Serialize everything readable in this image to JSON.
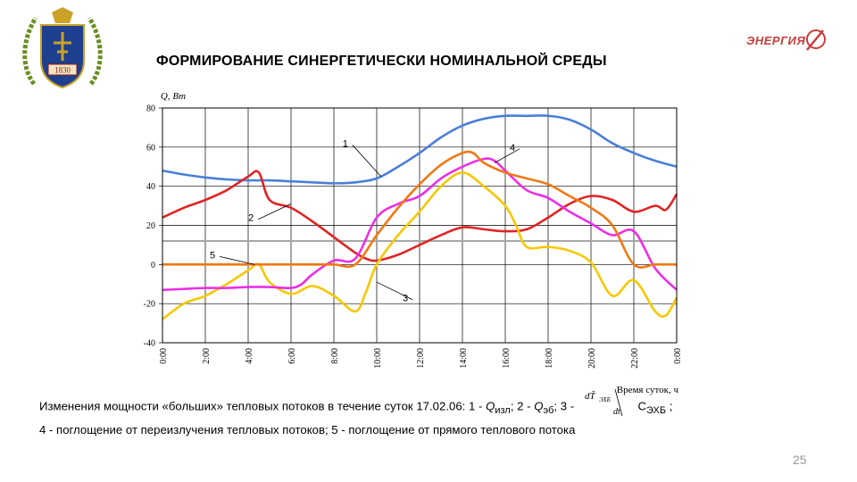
{
  "logo_left": {
    "year": "1830",
    "icon": "university-coat-of-arms-icon"
  },
  "logo_right": {
    "text": "ЭНЕРГИЯ",
    "icon": "energia-rocket-logo-icon"
  },
  "title": "ФОРМИРОВАНИЕ СИНЕРГЕТИЧЕСКИ НОМИНАЛЬНОЙ СРЕДЫ",
  "caption": {
    "line1_prefix": "Изменения мощности «больших» тепловых потоков в течение суток 17.02.06: 1 - ",
    "q": "Q",
    "sub_izl": "изл",
    "sep1": "; 2 - ",
    "sub_eb": "эб",
    "sep2": "; 3 -",
    "formula_num": "dT̃",
    "formula_num_sub": "ЭХБ",
    "formula_den": "dt",
    "c_label": "C",
    "c_sub": "ЭХБ",
    "end1": " ;",
    "line2": "4 - поглощение от переизлучения тепловых потоков; 5 - поглощение от прямого теплового потока"
  },
  "page_number": "25",
  "chart_data": {
    "type": "line",
    "ylabel": "Q, Вт",
    "xlabel": "Время суток, ч",
    "xlim": [
      0,
      24
    ],
    "ylim": [
      -40,
      80
    ],
    "yticks": [
      -40,
      -20,
      0,
      20,
      40,
      60,
      80
    ],
    "xtick_labels": [
      "0:00",
      "2:00",
      "4:00",
      "6:00",
      "8:00",
      "10:00",
      "12:00",
      "14:00",
      "16:00",
      "18:00",
      "20:00",
      "22:00",
      "0:00"
    ],
    "hline": 12,
    "hline_color": "#a6a6a6",
    "grid": true,
    "series": [
      {
        "name": "1",
        "color": "#4a7fd8",
        "x": [
          0,
          1,
          2,
          3,
          4,
          5,
          6,
          7,
          8,
          9,
          10,
          11,
          12,
          13,
          14,
          15,
          16,
          17,
          18,
          19,
          20,
          21,
          22,
          23,
          24
        ],
        "y": [
          48,
          46,
          44.5,
          43.5,
          43,
          43,
          42.5,
          42,
          41.5,
          42,
          44,
          50,
          57,
          65,
          71,
          74.5,
          76,
          76,
          76,
          74,
          69,
          62,
          57,
          53,
          50
        ]
      },
      {
        "name": "2",
        "color": "#e02424",
        "x": [
          0,
          1,
          2,
          3,
          4,
          4.5,
          5,
          6,
          7,
          8,
          9,
          9.5,
          10,
          11,
          12,
          13,
          14,
          15,
          16,
          17,
          18,
          19,
          20,
          21,
          22,
          23,
          23.5,
          24
        ],
        "y": [
          24,
          29,
          33,
          38,
          45,
          47,
          33,
          29,
          22,
          14,
          6,
          3,
          2,
          5,
          10,
          15,
          19,
          18,
          17,
          18,
          24,
          31,
          35,
          33,
          27,
          30,
          28,
          36
        ]
      },
      {
        "name": "3",
        "color": "#f5c800",
        "x": [
          0,
          1,
          2,
          3,
          4,
          4.5,
          5,
          6,
          7,
          8,
          9,
          9.5,
          10,
          11,
          12,
          13,
          14,
          15,
          16,
          16.5,
          17,
          18,
          19,
          20,
          21,
          22,
          23,
          23.5,
          24
        ],
        "y": [
          -28,
          -20,
          -16,
          -10,
          -3,
          0,
          -9,
          -15,
          -11,
          -16,
          -24,
          -14,
          0,
          15,
          27,
          40,
          47,
          40,
          30,
          20,
          9,
          9,
          7,
          1,
          -16,
          -8,
          -24,
          -26,
          -17
        ]
      },
      {
        "name": "4",
        "color": "#ec2ee7",
        "x": [
          0,
          1,
          2,
          3,
          4,
          5,
          6,
          6.5,
          7,
          8,
          9,
          10,
          11,
          12,
          13,
          14,
          15,
          15.5,
          16,
          17,
          18,
          19,
          20,
          21,
          22,
          23,
          24
        ],
        "y": [
          -13,
          -12.5,
          -12,
          -12,
          -11.5,
          -11.5,
          -12,
          -10,
          -5,
          2,
          3,
          24,
          31,
          35,
          44,
          50,
          54,
          53,
          48,
          38,
          34,
          27,
          21,
          15,
          17,
          -2,
          -13
        ]
      },
      {
        "name": "5",
        "color": "#f07814",
        "x": [
          0,
          1,
          2,
          3,
          4,
          5,
          6,
          7,
          8,
          9,
          10,
          11,
          12,
          13,
          14,
          14.5,
          15,
          16,
          17,
          18,
          19,
          20,
          21,
          22,
          23,
          24
        ],
        "y": [
          0,
          0,
          0,
          0,
          0,
          0,
          0,
          0,
          0,
          0,
          15,
          29,
          41,
          51,
          57,
          57,
          52,
          47,
          44,
          41,
          35,
          29,
          20,
          0,
          0,
          0
        ]
      }
    ],
    "annotations": [
      {
        "label": "1",
        "x": 8.7,
        "y": 62,
        "tx": 10.2,
        "ty": 45
      },
      {
        "label": "2",
        "x": 4.3,
        "y": 24,
        "tx": 6.0,
        "ty": 31
      },
      {
        "label": "3",
        "x": 11.5,
        "y": -17,
        "tx": 10.0,
        "ty": -9
      },
      {
        "label": "4",
        "x": 16.5,
        "y": 60,
        "tx": 15.5,
        "ty": 52
      },
      {
        "label": "5",
        "x": 2.5,
        "y": 5,
        "tx": 4.3,
        "ty": 0
      }
    ]
  }
}
